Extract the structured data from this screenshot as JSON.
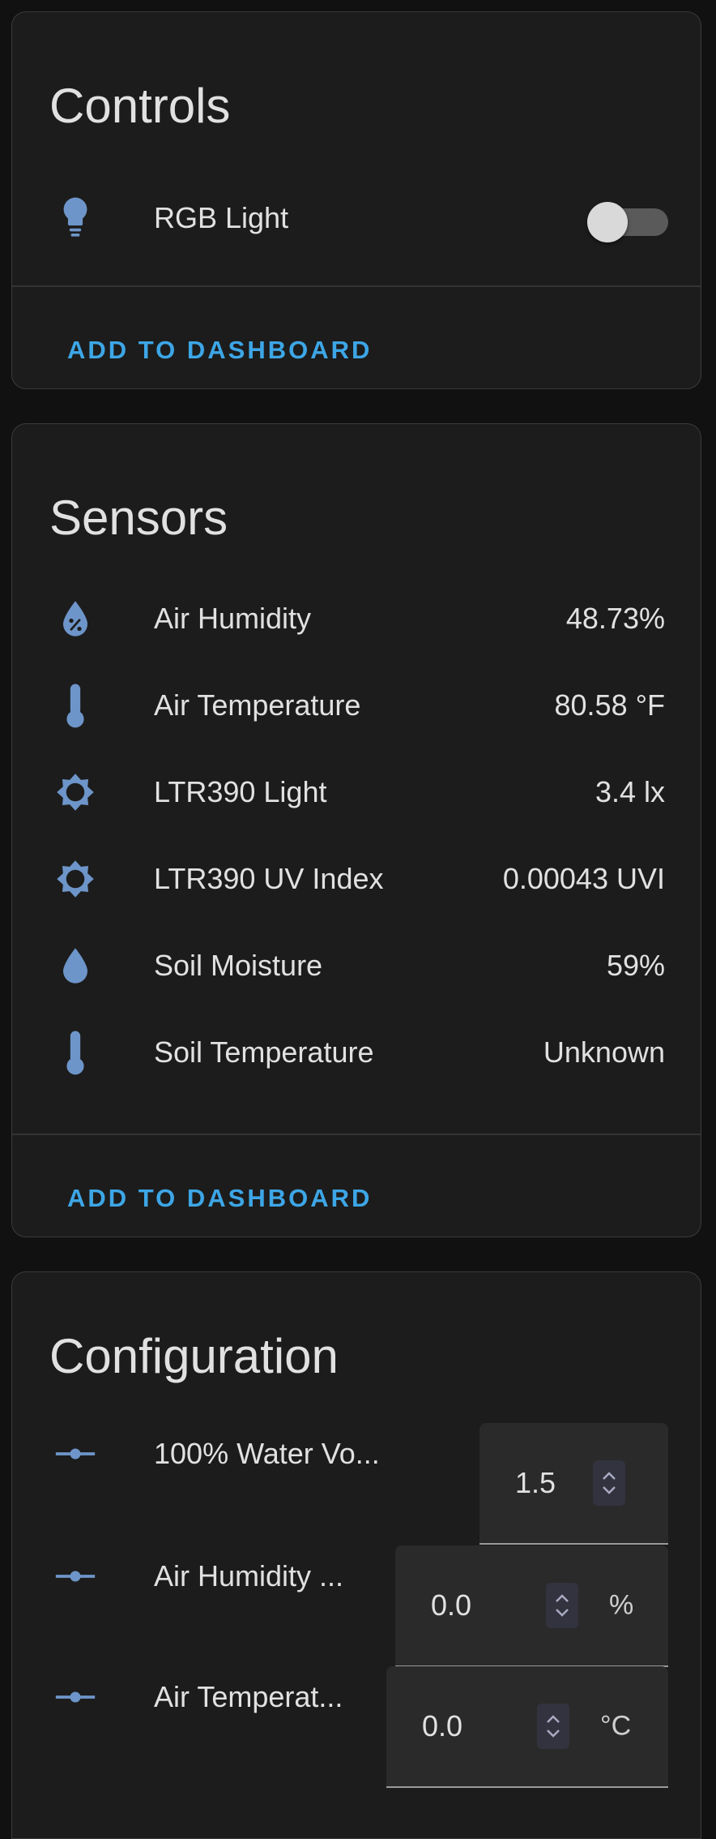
{
  "colors": {
    "accent": "#3da6e6",
    "icon": "#6d95c9",
    "card_bg": "#1c1c1c",
    "page_bg": "#111111"
  },
  "controls": {
    "title": "Controls",
    "items": [
      {
        "label": "RGB Light",
        "icon": "lightbulb-icon",
        "state": "off"
      }
    ],
    "action": "ADD TO DASHBOARD"
  },
  "sensors": {
    "title": "Sensors",
    "items": [
      {
        "label": "Air Humidity",
        "value": "48.73%",
        "icon": "humidity-percent-icon"
      },
      {
        "label": "Air Temperature",
        "value": "80.58 °F",
        "icon": "thermometer-icon"
      },
      {
        "label": "LTR390 Light",
        "value": "3.4 lx",
        "icon": "brightness-icon"
      },
      {
        "label": "LTR390 UV Index",
        "value": "0.00043 UVI",
        "icon": "brightness-icon"
      },
      {
        "label": "Soil Moisture",
        "value": "59%",
        "icon": "water-drop-icon"
      },
      {
        "label": "Soil Temperature",
        "value": "Unknown",
        "icon": "thermometer-icon"
      }
    ],
    "action": "ADD TO DASHBOARD"
  },
  "configuration": {
    "title": "Configuration",
    "items": [
      {
        "label": "100% Water Vo...",
        "value": "1.5",
        "unit": "",
        "icon": "slider-icon"
      },
      {
        "label": "Air Humidity ...",
        "value": "0.0",
        "unit": "%",
        "icon": "slider-icon"
      },
      {
        "label": "Air Temperat...",
        "value": "0.0",
        "unit": "°C",
        "icon": "slider-icon"
      }
    ]
  }
}
